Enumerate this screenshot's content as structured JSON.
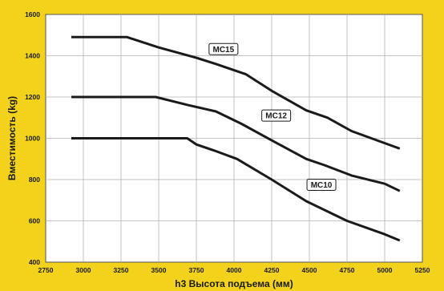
{
  "chart_data": {
    "type": "line",
    "xlabel": "h3 Высота подъема (мм)",
    "ylabel": "Вместимость (kg)",
    "xlim": [
      2750,
      5250
    ],
    "ylim": [
      400,
      1600
    ],
    "x_ticks": [
      2750,
      3000,
      3250,
      3500,
      3750,
      4000,
      4250,
      4500,
      4750,
      5000,
      5250
    ],
    "y_ticks": [
      400,
      600,
      800,
      1000,
      1200,
      1400,
      1600
    ],
    "grid": true,
    "legend": "inline labels on lines",
    "colors": {
      "background": "#f2d21a",
      "plot": "#ffffff",
      "grid": "#b3b3b3",
      "line": "#1a1a1a"
    },
    "series": [
      {
        "name": "MC15",
        "points": [
          [
            2920,
            1490
          ],
          [
            3290,
            1490
          ],
          [
            3500,
            1440
          ],
          [
            3750,
            1390
          ],
          [
            3880,
            1360
          ],
          [
            4080,
            1310
          ],
          [
            4250,
            1230
          ],
          [
            4480,
            1135
          ],
          [
            4620,
            1100
          ],
          [
            4780,
            1035
          ],
          [
            5100,
            950
          ]
        ],
        "label_at": [
          3930,
          1432
        ]
      },
      {
        "name": "MC12",
        "points": [
          [
            2920,
            1200
          ],
          [
            3480,
            1200
          ],
          [
            3700,
            1160
          ],
          [
            3880,
            1130
          ],
          [
            4050,
            1070
          ],
          [
            4250,
            990
          ],
          [
            4480,
            900
          ],
          [
            4600,
            870
          ],
          [
            4780,
            820
          ],
          [
            5000,
            780
          ],
          [
            5100,
            745
          ]
        ],
        "label_at": [
          4280,
          1110
        ]
      },
      {
        "name": "MC10",
        "points": [
          [
            2920,
            1000
          ],
          [
            3690,
            1000
          ],
          [
            3750,
            970
          ],
          [
            3870,
            940
          ],
          [
            4020,
            900
          ],
          [
            4250,
            800
          ],
          [
            4480,
            695
          ],
          [
            4750,
            600
          ],
          [
            5000,
            535
          ],
          [
            5100,
            505
          ]
        ],
        "label_at": [
          4580,
          775
        ]
      }
    ]
  }
}
